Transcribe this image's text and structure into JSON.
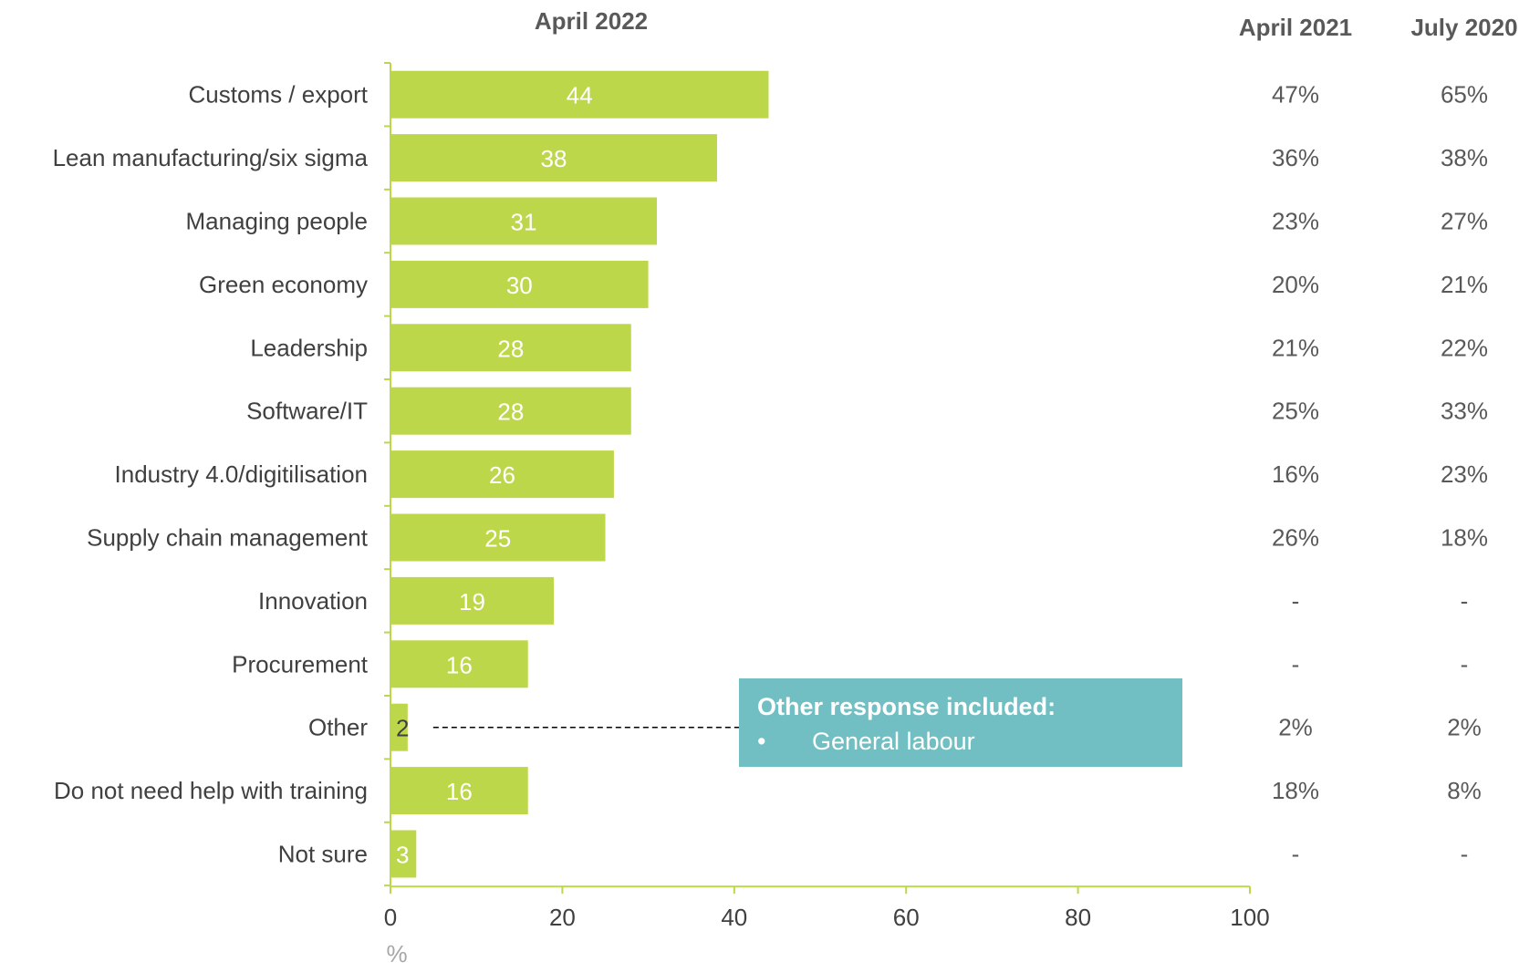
{
  "chart_data": {
    "type": "bar",
    "orientation": "horizontal",
    "title": "April 2022",
    "categories": [
      "Customs / export",
      "Lean manufacturing/six sigma",
      "Managing people",
      "Green economy",
      "Leadership",
      "Software/IT",
      "Industry 4.0/digitilisation",
      "Supply chain management",
      "Innovation",
      "Procurement",
      "Other",
      "Do not need help with training",
      "Not sure"
    ],
    "series": [
      {
        "values": [
          44,
          38,
          31,
          30,
          28,
          28,
          26,
          25,
          19,
          16,
          2,
          16,
          3
        ]
      }
    ],
    "xlim": [
      0,
      100
    ],
    "x_ticks": [
      0,
      20,
      40,
      60,
      80,
      100
    ],
    "xlabel": "%",
    "ylabel": "",
    "grid": false,
    "bar_color": "#bdd74a",
    "comparison_columns": [
      {
        "title": "April 2021",
        "values": [
          "47%",
          "36%",
          "23%",
          "20%",
          "21%",
          "25%",
          "16%",
          "26%",
          "-",
          "-",
          "2%",
          "18%",
          "-"
        ]
      },
      {
        "title": "July 2020",
        "values": [
          "65%",
          "38%",
          "27%",
          "21%",
          "22%",
          "33%",
          "23%",
          "18%",
          "-",
          "-",
          "2%",
          "8%",
          "-"
        ]
      }
    ],
    "annotation": {
      "title": "Other response included:",
      "bullet": "•",
      "items": [
        "General labour"
      ],
      "color": "#72bfc3",
      "points_to": "Other"
    }
  }
}
